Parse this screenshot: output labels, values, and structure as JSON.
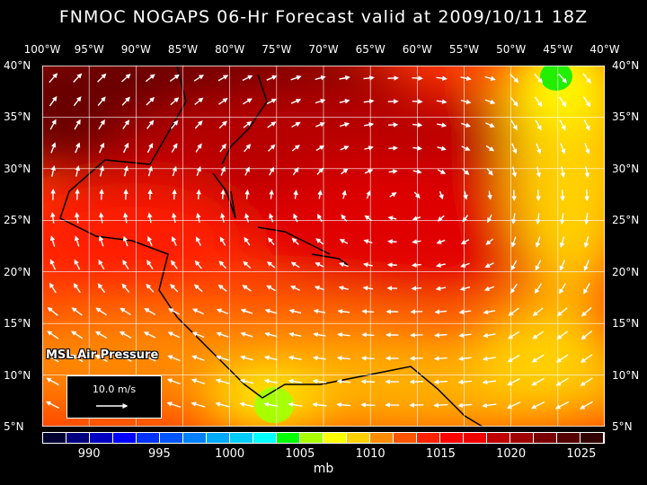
{
  "title": "FNMOC NOGAPS 06-Hr Forecast valid at 2009/10/11 18Z",
  "longitudes": [
    "100°W",
    "95°W",
    "90°W",
    "85°W",
    "80°W",
    "75°W",
    "70°W",
    "65°W",
    "60°W",
    "55°W",
    "50°W",
    "45°W",
    "40°W"
  ],
  "latitudes": [
    "40°N",
    "35°N",
    "30°N",
    "25°N",
    "20°N",
    "15°N",
    "10°N",
    "5°N"
  ],
  "field_label": "MSL Air Pressure",
  "reference_vector": "10.0 m/s",
  "colorbar": {
    "colors": [
      "#000033",
      "#000080",
      "#0000c0",
      "#0000ff",
      "#0033ff",
      "#0055ff",
      "#0080ff",
      "#00aaff",
      "#00ccff",
      "#00ffff",
      "#00ff00",
      "#aaff00",
      "#ffff00",
      "#ffd000",
      "#ff8c00",
      "#ff5500",
      "#ff2200",
      "#ff0000",
      "#ee0000",
      "#c00000",
      "#a00000",
      "#7a0000",
      "#550000",
      "#330000"
    ],
    "labels": [
      "990",
      "995",
      "1000",
      "1005",
      "1010",
      "1015",
      "1020",
      "1025"
    ],
    "unit": "mb"
  }
}
